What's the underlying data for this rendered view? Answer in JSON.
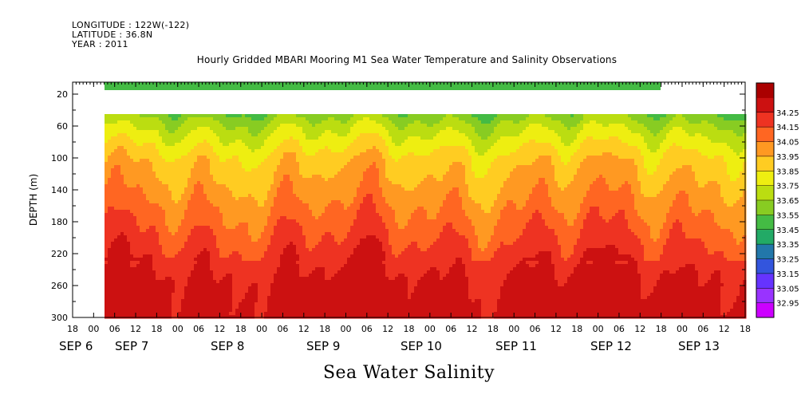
{
  "header": {
    "longitude": "LONGITUDE : 122W(-122)",
    "latitude": "LATITUDE : 36.8N",
    "year": "YEAR : 2011"
  },
  "chart_data": {
    "type": "heatmap",
    "title": "Hourly Gridded MBARI Mooring M1 Sea Water Temperature and Salinity Observations",
    "variable_title": "Sea Water Salinity",
    "ylabel": "DEPTH (m)",
    "ylim": [
      300,
      5
    ],
    "y_ticks": [
      20,
      60,
      100,
      140,
      180,
      220,
      260,
      300
    ],
    "x_hour_ticks": [
      "18",
      "00",
      "06",
      "12",
      "18",
      "00",
      "06",
      "12",
      "18",
      "00",
      "06",
      "12",
      "18",
      "00",
      "06",
      "12",
      "18",
      "00",
      "06",
      "12",
      "18",
      "00",
      "06",
      "12",
      "18",
      "00",
      "06",
      "12",
      "18",
      "00",
      "06",
      "12",
      "18"
    ],
    "x_day_labels": [
      "SEP 6",
      "SEP 7",
      "SEP 8",
      "SEP 9",
      "SEP 10",
      "SEP 11",
      "SEP 12",
      "SEP 13"
    ],
    "colorbar_levels": [
      32.95,
      33.05,
      33.15,
      33.25,
      33.35,
      33.45,
      33.55,
      33.65,
      33.75,
      33.85,
      33.95,
      34.05,
      34.15,
      34.25
    ],
    "colorbar_colors": [
      "#cc00ff",
      "#9933ff",
      "#6633ff",
      "#3355dd",
      "#2277aa",
      "#22aa66",
      "#44bb44",
      "#88cc22",
      "#bbdd11",
      "#eeee11",
      "#ffcc22",
      "#ff9922",
      "#ff6622",
      "#ee3322",
      "#cc1111",
      "#aa0000"
    ],
    "depth_profile": [
      {
        "depth": 10,
        "salinity": 33.5
      },
      {
        "depth": 40,
        "salinity": 33.55
      },
      {
        "depth": 60,
        "salinity": 33.7
      },
      {
        "depth": 80,
        "salinity": 33.8
      },
      {
        "depth": 100,
        "salinity": 33.9
      },
      {
        "depth": 120,
        "salinity": 33.95
      },
      {
        "depth": 140,
        "salinity": 34.0
      },
      {
        "depth": 160,
        "salinity": 34.05
      },
      {
        "depth": 180,
        "salinity": 34.1
      },
      {
        "depth": 200,
        "salinity": 34.15
      },
      {
        "depth": 220,
        "salinity": 34.2
      },
      {
        "depth": 240,
        "salinity": 34.25
      },
      {
        "depth": 260,
        "salinity": 34.28
      },
      {
        "depth": 300,
        "salinity": 34.3
      }
    ]
  }
}
